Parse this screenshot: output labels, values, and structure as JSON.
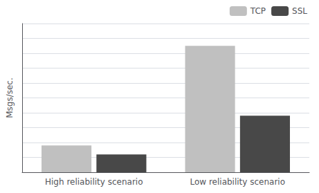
{
  "chart_data": {
    "type": "bar",
    "categories": [
      "High reliability scenario",
      "Low reliability scenario"
    ],
    "series": [
      {
        "name": "TCP",
        "color": "#c0c0c0",
        "values": [
          1.8,
          8.5
        ]
      },
      {
        "name": "SSL",
        "color": "#484848",
        "values": [
          1.2,
          3.8
        ]
      }
    ],
    "ylabel": "Msgs/sec.",
    "ylim": [
      0,
      10
    ],
    "yticks": [
      0,
      1,
      2,
      3,
      4,
      5,
      6,
      7,
      8,
      9,
      10
    ],
    "grid": true,
    "legend": "upper right",
    "tick_labels": "x"
  }
}
